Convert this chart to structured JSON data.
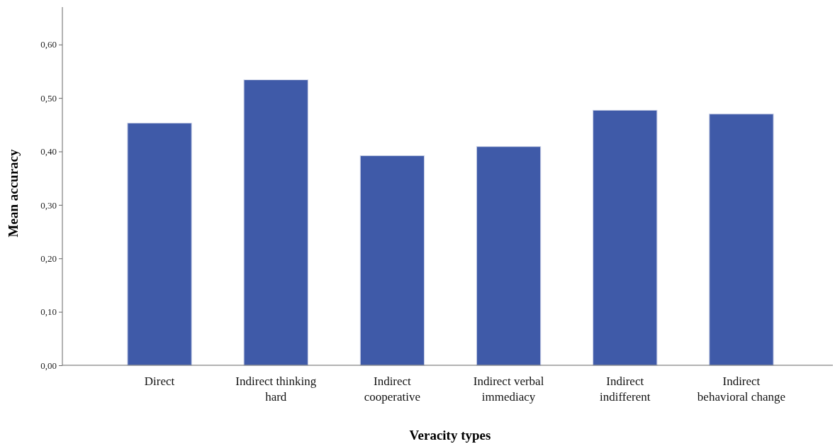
{
  "chart_data": {
    "type": "bar",
    "xlabel": "Veracity types",
    "ylabel": "Mean accuracy",
    "categories": [
      "Direct",
      "Indirect thinking hard",
      "Indirect cooperative",
      "Indirect verbal immediacy",
      "Indirect indifferent",
      "Indirect behavioral change"
    ],
    "values": [
      0.453,
      0.534,
      0.392,
      0.409,
      0.477,
      0.47
    ],
    "color": "#3f5aa8",
    "ylim": [
      0,
      0.67
    ],
    "yticks": [
      {
        "value": 0,
        "label": "0,00"
      },
      {
        "value": 0.1,
        "label": "0,10"
      },
      {
        "value": 0.2,
        "label": "0,20"
      },
      {
        "value": 0.3,
        "label": "0,30"
      },
      {
        "value": 0.4,
        "label": "0,40"
      },
      {
        "value": 0.5,
        "label": "0,50"
      },
      {
        "value": 0.6,
        "label": "0,60"
      }
    ],
    "grid": false
  }
}
